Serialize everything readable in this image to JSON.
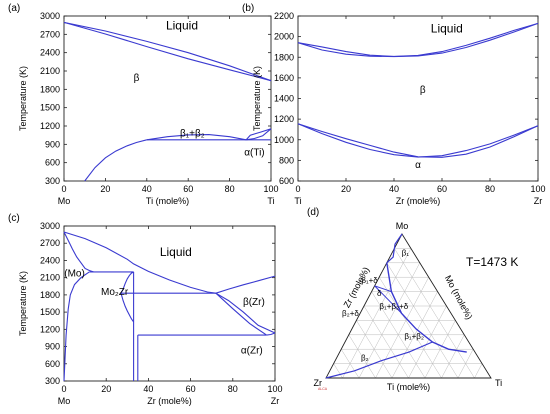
{
  "chart_data": [
    {
      "type": "line",
      "panel": "(a)",
      "xlabel": "Ti (mole%)",
      "ylabel": "Temperature (K)",
      "xlim": [
        0,
        100
      ],
      "ylim": [
        300,
        3000
      ],
      "xticks": [
        0,
        20,
        40,
        60,
        80,
        100
      ],
      "yticks": [
        300,
        600,
        900,
        1200,
        1500,
        1800,
        2100,
        2400,
        2700,
        3000
      ],
      "end_labels": [
        "Mo",
        "Ti"
      ],
      "regions": [
        {
          "text": "Liquid",
          "x": 57,
          "y": 2780
        },
        {
          "text": "β",
          "x": 35,
          "y": 1940
        },
        {
          "text": "β₁+β₂",
          "x": 62,
          "y": 1030
        },
        {
          "text": "α(Ti)",
          "x": 92,
          "y": 715
        }
      ],
      "series": [
        {
          "x": [
            0,
            20,
            40,
            60,
            80,
            100
          ],
          "y": [
            2896,
            2755,
            2585,
            2400,
            2185,
            1941
          ]
        },
        {
          "x": [
            0,
            20,
            40,
            60,
            80,
            100
          ],
          "y": [
            2896,
            2705,
            2500,
            2300,
            2120,
            1941
          ]
        },
        {
          "x": [
            40,
            50,
            60,
            70,
            80,
            88
          ],
          "y": [
            975,
            1025,
            1055,
            1060,
            1025,
            975
          ]
        },
        {
          "x": [
            88,
            90,
            95,
            100
          ],
          "y": [
            975,
            1050,
            1100,
            1155
          ]
        },
        {
          "x": [
            40,
            100
          ],
          "y": [
            975,
            975
          ]
        },
        {
          "x": [
            10,
            15,
            20,
            25,
            30,
            35,
            40
          ],
          "y": [
            300,
            520,
            680,
            790,
            870,
            930,
            975
          ]
        },
        {
          "x": [
            88,
            92,
            96,
            100
          ],
          "y": [
            975,
            995,
            1040,
            1155
          ]
        }
      ]
    },
    {
      "type": "line",
      "panel": "(b)",
      "xlabel": "Zr (mole%)",
      "ylabel": "Temperature (K)",
      "xlim": [
        0,
        100
      ],
      "ylim": [
        600,
        2200
      ],
      "xticks": [
        0,
        20,
        40,
        60,
        80,
        100
      ],
      "yticks": [
        600,
        800,
        1000,
        1200,
        1400,
        1600,
        1800,
        2000,
        2200
      ],
      "end_labels": [
        "Ti",
        "Zr"
      ],
      "regions": [
        {
          "text": "Liquid",
          "x": 62,
          "y": 2040
        },
        {
          "text": "β",
          "x": 52,
          "y": 1455
        },
        {
          "text": "α",
          "x": 50,
          "y": 725
        }
      ],
      "series": [
        {
          "x": [
            0,
            10,
            20,
            30,
            40,
            50,
            60,
            70,
            80,
            90,
            100
          ],
          "y": [
            1941,
            1900,
            1855,
            1820,
            1808,
            1818,
            1855,
            1915,
            1985,
            2060,
            2128
          ]
        },
        {
          "x": [
            0,
            10,
            20,
            30,
            40,
            50,
            60,
            70,
            80,
            90,
            100
          ],
          "y": [
            1941,
            1870,
            1830,
            1810,
            1806,
            1812,
            1840,
            1895,
            1965,
            2045,
            2128
          ]
        },
        {
          "x": [
            0,
            10,
            20,
            30,
            40,
            50,
            60,
            70,
            80,
            90,
            100
          ],
          "y": [
            1155,
            1060,
            975,
            905,
            855,
            832,
            845,
            895,
            960,
            1045,
            1136
          ]
        },
        {
          "x": [
            0,
            10,
            20,
            30,
            40,
            50,
            60,
            70,
            80,
            90,
            100
          ],
          "y": [
            1155,
            1080,
            1010,
            945,
            880,
            835,
            830,
            860,
            930,
            1030,
            1136
          ]
        }
      ]
    },
    {
      "type": "line",
      "panel": "(c)",
      "xlabel": "Zr (mole%)",
      "ylabel": "Temperature (K)",
      "xlim": [
        0,
        100
      ],
      "ylim": [
        300,
        3000
      ],
      "xticks": [
        0,
        20,
        40,
        60,
        80,
        100
      ],
      "yticks": [
        300,
        600,
        900,
        1200,
        1500,
        1800,
        2100,
        2400,
        2700,
        3000
      ],
      "end_labels": [
        "Mo",
        "Zr"
      ],
      "regions": [
        {
          "text": "Liquid",
          "x": 53,
          "y": 2480
        },
        {
          "text": "(Mo)",
          "x": 5,
          "y": 2120
        },
        {
          "text": "Mo₂Zr",
          "x": 24,
          "y": 1800
        },
        {
          "text": "β(Zr)",
          "x": 90,
          "y": 1620
        },
        {
          "text": "α(Zr)",
          "x": 89,
          "y": 780
        }
      ],
      "series": [
        {
          "x": [
            0,
            10,
            20,
            30,
            33,
            40,
            50,
            60,
            68,
            72
          ],
          "y": [
            2896,
            2780,
            2620,
            2420,
            2340,
            2210,
            2060,
            1930,
            1850,
            1830
          ]
        },
        {
          "x": [
            72,
            78,
            85,
            92,
            100
          ],
          "y": [
            1830,
            1900,
            1975,
            2045,
            2128
          ]
        },
        {
          "x": [
            0,
            2,
            4,
            6,
            8,
            10,
            12,
            14
          ],
          "y": [
            2896,
            2750,
            2600,
            2460,
            2360,
            2260,
            2225,
            2200
          ]
        },
        {
          "x": [
            0,
            1,
            2,
            3,
            5,
            8,
            12
          ],
          "y": [
            300,
            1100,
            1550,
            1800,
            1980,
            2100,
            2200
          ]
        },
        {
          "x": [
            12,
            33
          ],
          "y": [
            2200,
            2200
          ]
        },
        {
          "x": [
            27,
            28,
            29,
            30,
            31,
            32,
            33
          ],
          "y": [
            1830,
            1900,
            2000,
            2080,
            2140,
            2180,
            2200
          ]
        },
        {
          "x": [
            27,
            28,
            29,
            30,
            31,
            32,
            33
          ],
          "y": [
            1830,
            1700,
            1600,
            1520,
            1450,
            1380,
            1330
          ]
        },
        {
          "x": [
            27,
            72
          ],
          "y": [
            1830,
            1830
          ]
        },
        {
          "x": [
            33,
            33
          ],
          "y": [
            300,
            2200
          ]
        },
        {
          "x": [
            35,
            35
          ],
          "y": [
            300,
            1100
          ]
        },
        {
          "x": [
            72,
            78,
            85,
            92,
            100
          ],
          "y": [
            1830,
            1700,
            1500,
            1270,
            1136
          ]
        },
        {
          "x": [
            72,
            80,
            88,
            96
          ],
          "y": [
            1830,
            1560,
            1300,
            1100
          ]
        },
        {
          "x": [
            35,
            96
          ],
          "y": [
            1100,
            1100
          ]
        },
        {
          "x": [
            96,
            98,
            100
          ],
          "y": [
            1100,
            1110,
            1136
          ]
        }
      ]
    },
    {
      "type": "ternary",
      "panel": "(d)",
      "annotation": "T=1473 K",
      "vertices": [
        "Mo",
        "Zr",
        "Ti"
      ],
      "axis_labels": [
        "Zr (mole%)",
        "Mo (mole%)",
        "Ti (mole%)"
      ],
      "regions": [
        {
          "text": "β₁",
          "Zr": 6,
          "Mo": 85
        },
        {
          "text": "β₁+δ",
          "Zr": 38,
          "Mo": 66
        },
        {
          "text": "δ",
          "Zr": 37,
          "Mo": 57
        },
        {
          "text": "β₁+β₂+δ",
          "Zr": 33,
          "Mo": 48
        },
        {
          "text": "β₂+δ",
          "Zr": 62,
          "Mo": 43
        },
        {
          "text": "β₁+β₂",
          "Zr": 32,
          "Mo": 27
        },
        {
          "text": "β₂",
          "Zr": 70,
          "Mo": 12
        }
      ]
    }
  ],
  "branding": {
    "mark": "ALCA"
  }
}
